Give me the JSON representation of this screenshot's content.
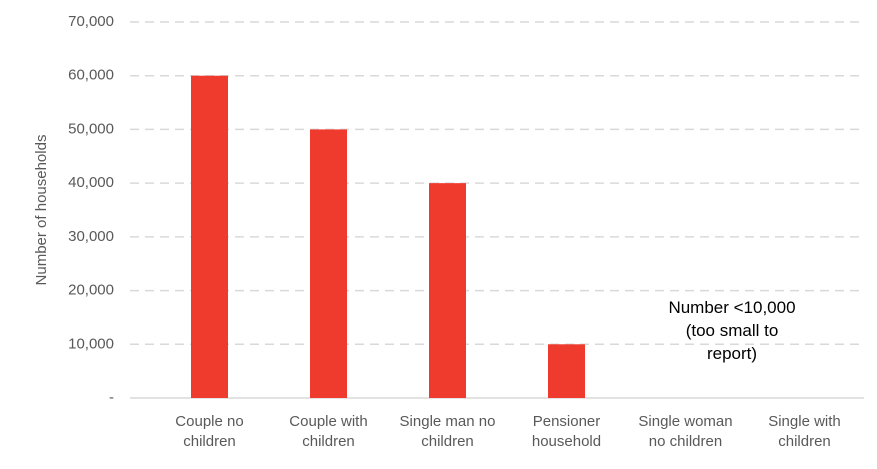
{
  "chart_data": {
    "type": "bar",
    "y_label": "Number of households",
    "categories": [
      "Couple no children",
      "Couple with children",
      "Single man no children",
      "Pensioner household",
      "Single woman no children",
      "Single with children"
    ],
    "values": [
      60000,
      50000,
      40000,
      10000,
      null,
      null
    ],
    "color": "#ee3b2e",
    "ylim": [
      0,
      70000
    ],
    "yticks": [
      {
        "value": 0,
        "label": "-"
      },
      {
        "value": 10000,
        "label": "10,000"
      },
      {
        "value": 20000,
        "label": "20,000"
      },
      {
        "value": 30000,
        "label": "30,000"
      },
      {
        "value": 40000,
        "label": "40,000"
      },
      {
        "value": 50000,
        "label": "50,000"
      },
      {
        "value": 60000,
        "label": "60,000"
      },
      {
        "value": 70000,
        "label": "70,000"
      }
    ],
    "grid": true,
    "annotation": "Number <10,000 (too small to report)"
  }
}
